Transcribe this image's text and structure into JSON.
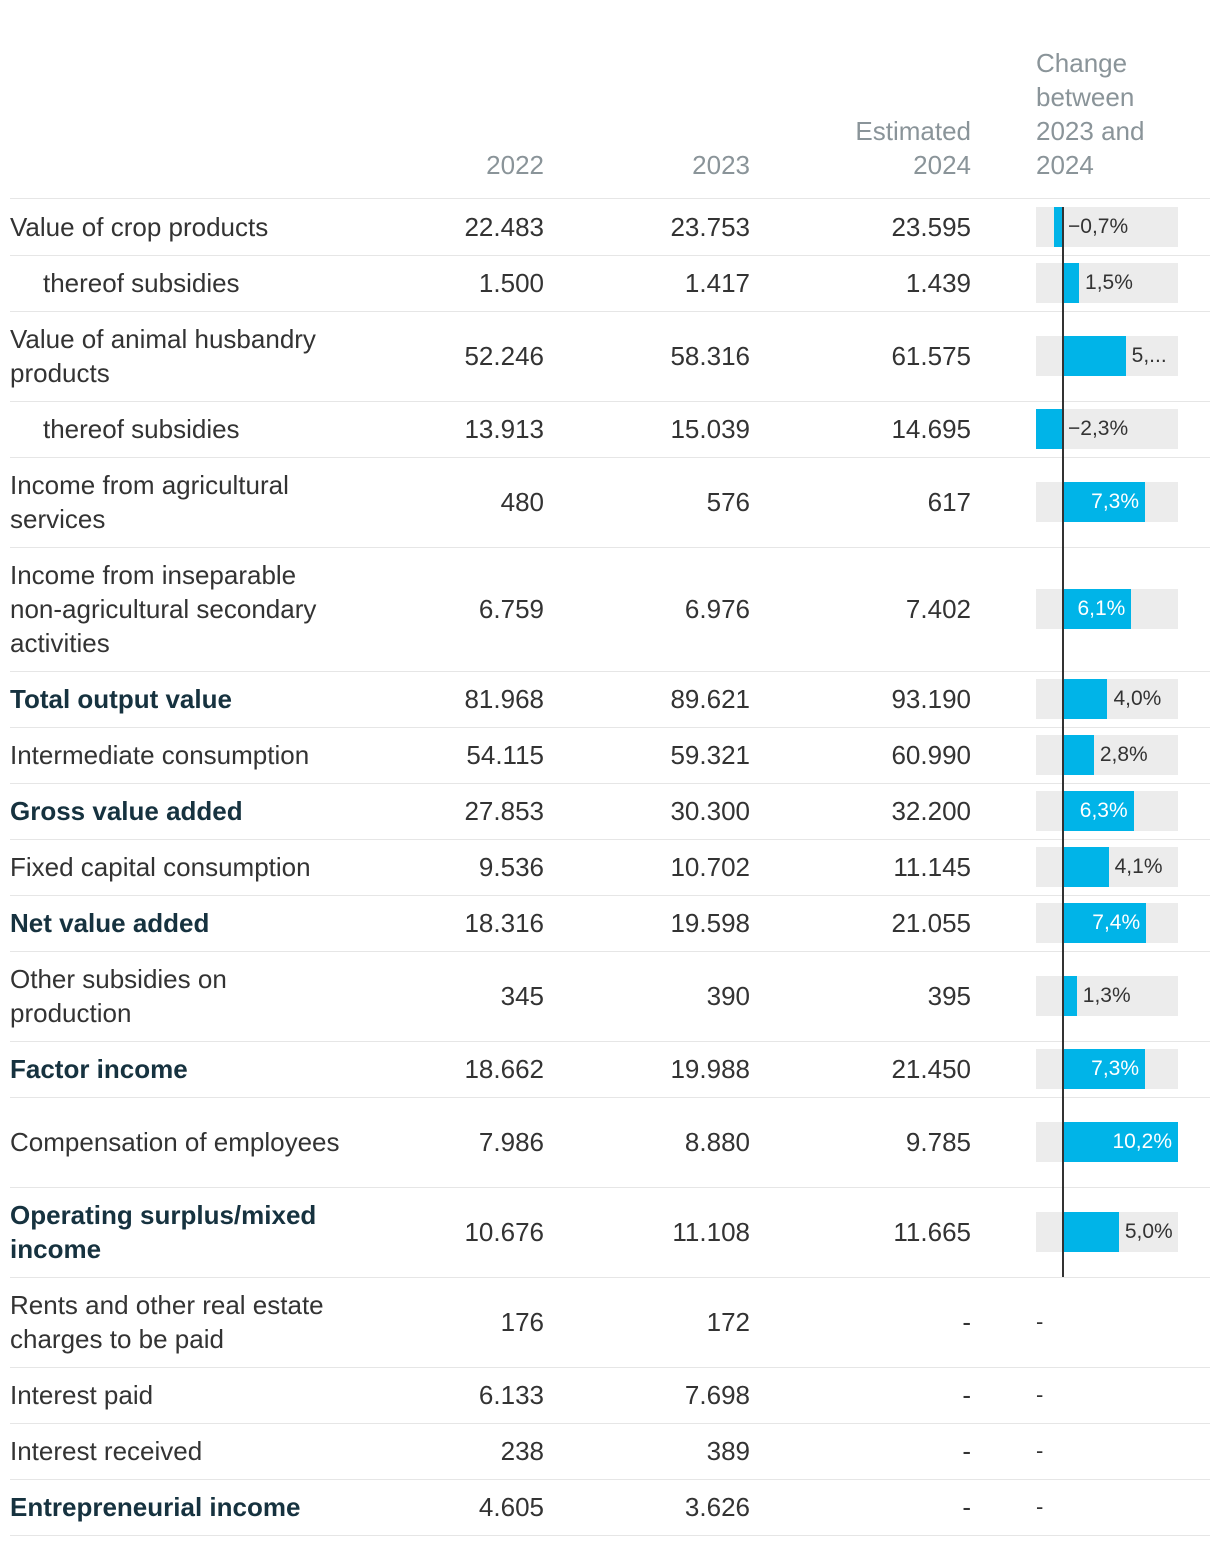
{
  "header": {
    "col_2022": "2022",
    "col_2023": "2023",
    "col_est_line1": "Estimated",
    "col_est_line2": "2024",
    "col_change_line1": "Change",
    "col_change_line2": "between",
    "col_change_line3": "2023 and",
    "col_change_line4": "2024"
  },
  "rows": [
    {
      "label": "Value of crop products",
      "v2022": "22.483",
      "v2023": "23.753",
      "v2024": "23.595",
      "change": -0.7,
      "change_label": "−0,7%",
      "indent": false,
      "bold": false
    },
    {
      "label": "thereof subsidies",
      "v2022": "1.500",
      "v2023": "1.417",
      "v2024": "1.439",
      "change": 1.5,
      "change_label": "1,5%",
      "indent": true,
      "bold": false
    },
    {
      "label": "Value of animal husbandry products",
      "v2022": "52.246",
      "v2023": "58.316",
      "v2024": "61.575",
      "change": 5.6,
      "change_label": "5,...",
      "indent": false,
      "bold": false
    },
    {
      "label": "thereof subsidies",
      "v2022": "13.913",
      "v2023": "15.039",
      "v2024": "14.695",
      "change": -2.3,
      "change_label": "−2,3%",
      "indent": true,
      "bold": false
    },
    {
      "label": "Income from agricultural services",
      "v2022": "480",
      "v2023": "576",
      "v2024": "617",
      "change": 7.3,
      "change_label": "7,3%",
      "indent": false,
      "bold": false
    },
    {
      "label": "Income from inseparable non-agricultural secondary activities",
      "v2022": "6.759",
      "v2023": "6.976",
      "v2024": "7.402",
      "change": 6.1,
      "change_label": "6,1%",
      "indent": false,
      "bold": false
    },
    {
      "label": "Total output value",
      "v2022": "81.968",
      "v2023": "89.621",
      "v2024": "93.190",
      "change": 4.0,
      "change_label": "4,0%",
      "indent": false,
      "bold": true
    },
    {
      "label": "Intermediate consumption",
      "v2022": "54.115",
      "v2023": "59.321",
      "v2024": "60.990",
      "change": 2.8,
      "change_label": "2,8%",
      "indent": false,
      "bold": false
    },
    {
      "label": "Gross value added",
      "v2022": "27.853",
      "v2023": "30.300",
      "v2024": "32.200",
      "change": 6.3,
      "change_label": "6,3%",
      "indent": false,
      "bold": true
    },
    {
      "label": "Fixed capital consumption",
      "v2022": "9.536",
      "v2023": "10.702",
      "v2024": "11.145",
      "change": 4.1,
      "change_label": "4,1%",
      "indent": false,
      "bold": false
    },
    {
      "label": "Net value added",
      "v2022": "18.316",
      "v2023": "19.598",
      "v2024": "21.055",
      "change": 7.4,
      "change_label": "7,4%",
      "indent": false,
      "bold": true
    },
    {
      "label": "Other subsidies on production",
      "v2022": "345",
      "v2023": "390",
      "v2024": "395",
      "change": 1.3,
      "change_label": "1,3%",
      "indent": false,
      "bold": false
    },
    {
      "label": "Factor income",
      "v2022": "18.662",
      "v2023": "19.988",
      "v2024": "21.450",
      "change": 7.3,
      "change_label": "7,3%",
      "indent": false,
      "bold": true
    },
    {
      "label": "Compensation of employees",
      "v2022": "7.986",
      "v2023": "8.880",
      "v2024": "9.785",
      "change": 10.2,
      "change_label": "10,2%",
      "indent": false,
      "bold": false
    },
    {
      "label": "Operating surplus/mixed income",
      "v2022": "10.676",
      "v2023": "11.108",
      "v2024": "11.665",
      "change": 5.0,
      "change_label": "5,0%",
      "indent": false,
      "bold": true
    },
    {
      "label": "Rents and other real estate charges to be paid",
      "v2022": "176",
      "v2023": "172",
      "v2024": "-",
      "change": null,
      "change_label": "-",
      "indent": false,
      "bold": false
    },
    {
      "label": "Interest paid",
      "v2022": "6.133",
      "v2023": "7.698",
      "v2024": "-",
      "change": null,
      "change_label": "-",
      "indent": false,
      "bold": false
    },
    {
      "label": "Interest received",
      "v2022": "238",
      "v2023": "389",
      "v2024": "-",
      "change": null,
      "change_label": "-",
      "indent": false,
      "bold": false
    },
    {
      "label": "Entrepreneurial income",
      "v2022": "4.605",
      "v2023": "3.626",
      "v2024": "-",
      "change": null,
      "change_label": "-",
      "indent": false,
      "bold": true
    }
  ],
  "chart_data": {
    "type": "table",
    "title": "",
    "columns": [
      "2022",
      "2023",
      "Estimated 2024",
      "Change between 2023 and 2024"
    ],
    "categories": [
      "Value of crop products",
      "thereof subsidies",
      "Value of animal husbandry products",
      "thereof subsidies",
      "Income from agricultural services",
      "Income from inseparable non-agricultural secondary activities",
      "Total output value",
      "Intermediate consumption",
      "Gross value added",
      "Fixed capital consumption",
      "Net value added",
      "Other subsidies on production",
      "Factor income",
      "Compensation of employees",
      "Operating surplus/mixed income"
    ],
    "change_percent": [
      -0.7,
      1.5,
      5.6,
      -2.3,
      7.3,
      6.1,
      4.0,
      2.8,
      6.3,
      4.1,
      7.4,
      1.3,
      7.3,
      10.2,
      5.0
    ],
    "bar_range_percent": [
      -2.3,
      10.2
    ],
    "colors": {
      "bar": "#00b4e8",
      "bar_background": "#ececec",
      "zero_line": "#333333",
      "header_text": "#8a9499"
    }
  }
}
